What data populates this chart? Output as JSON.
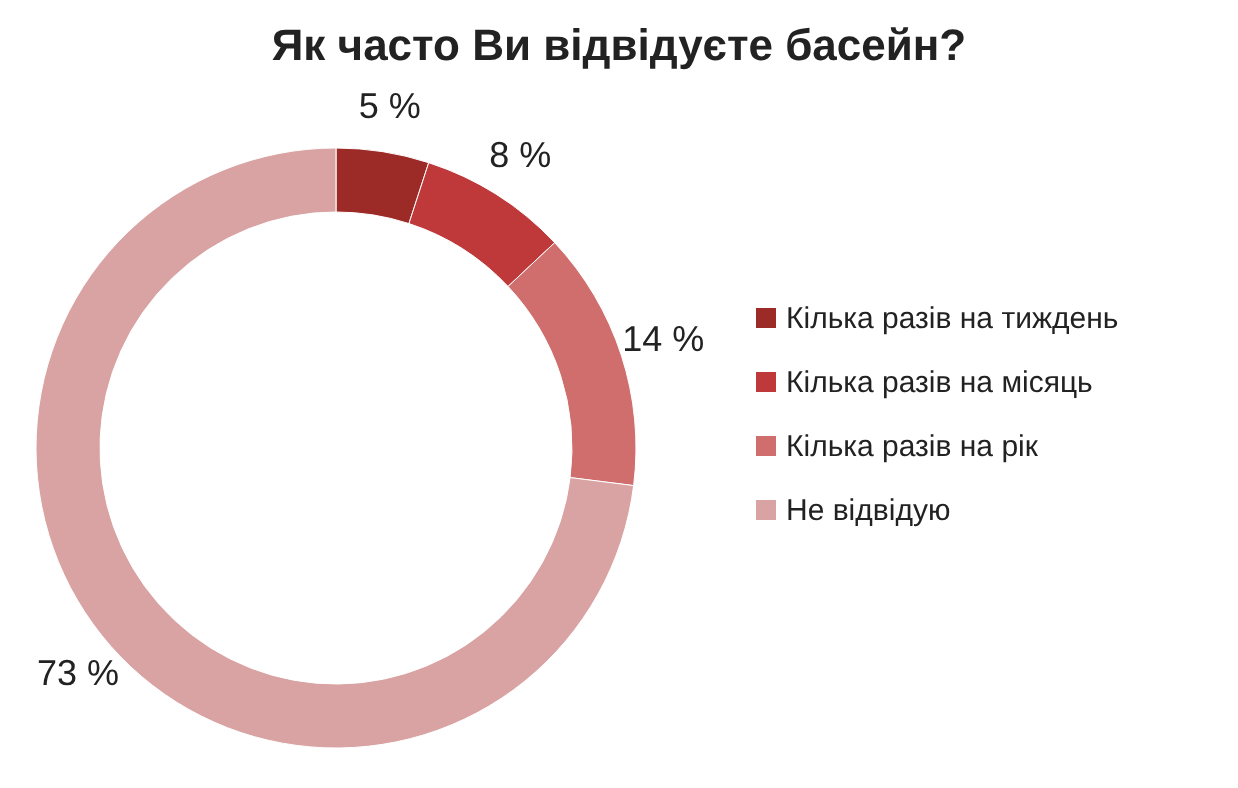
{
  "chart_data": {
    "type": "donut",
    "title": "Як часто Ви відвідуєте басейн?",
    "categories": [
      "Кілька разів на тиждень",
      "Кілька разів на місяць",
      "Кілька разів на рік",
      "Не відвідую"
    ],
    "values": [
      5,
      8,
      14,
      73
    ],
    "colors": [
      "#9c2b28",
      "#c0393a",
      "#d06e6e",
      "#d9a3a3"
    ],
    "value_labels": [
      "5 %",
      "8 %",
      "14 %",
      "73 %"
    ],
    "legend": "right"
  }
}
